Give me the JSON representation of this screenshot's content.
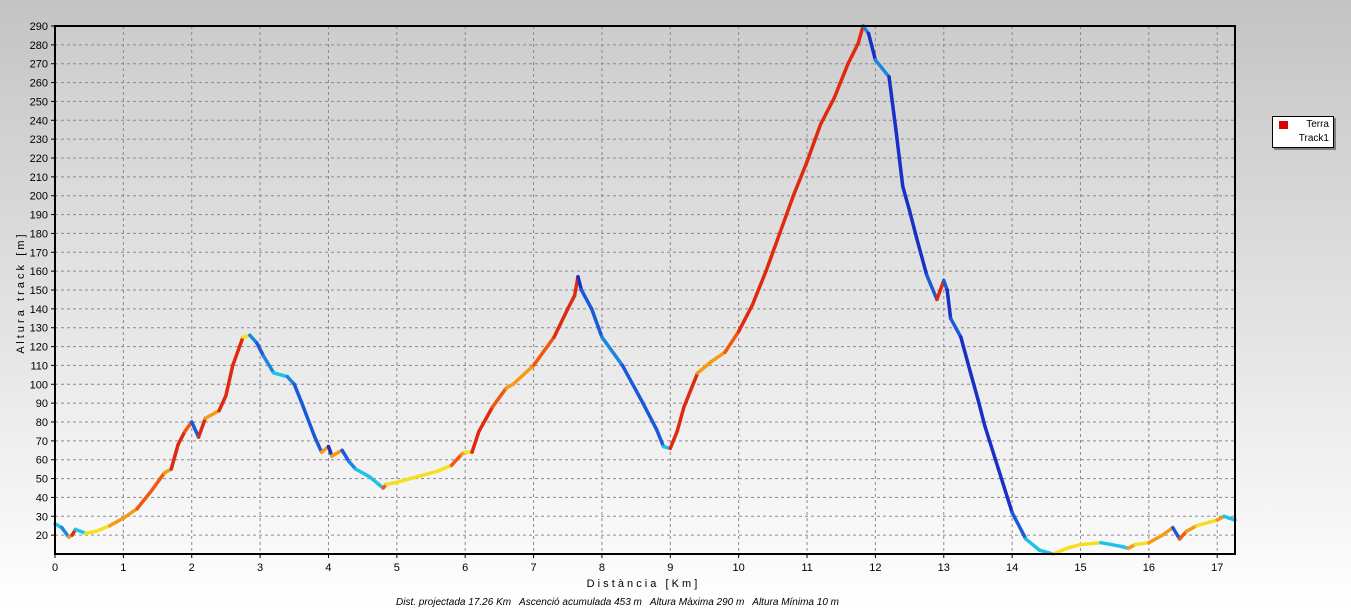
{
  "chart_data": {
    "type": "line",
    "xlabel": "D i s t à n c i a   [ K m ]",
    "ylabel": "A l t u r a   t r a c k   [ m ]",
    "xlim": [
      0,
      17.26
    ],
    "ylim": [
      10,
      290
    ],
    "x_ticks": [
      0,
      1,
      2,
      3,
      4,
      5,
      6,
      7,
      8,
      9,
      10,
      11,
      12,
      13,
      14,
      15,
      16,
      17
    ],
    "y_ticks": [
      20,
      30,
      40,
      50,
      60,
      70,
      80,
      90,
      100,
      110,
      120,
      130,
      140,
      150,
      160,
      170,
      180,
      190,
      200,
      210,
      220,
      230,
      240,
      250,
      260,
      270,
      280,
      290
    ],
    "grid": true,
    "legend_position": "right",
    "series": [
      {
        "name": "Track1",
        "x": [
          0,
          0.1,
          0.2,
          0.25,
          0.3,
          0.45,
          0.6,
          0.8,
          1.0,
          1.2,
          1.4,
          1.6,
          1.7,
          1.8,
          1.9,
          2.0,
          2.1,
          2.2,
          2.4,
          2.5,
          2.6,
          2.75,
          2.85,
          2.95,
          3.05,
          3.2,
          3.4,
          3.5,
          3.6,
          3.8,
          3.9,
          4.0,
          4.05,
          4.2,
          4.3,
          4.4,
          4.6,
          4.8,
          4.85,
          5.0,
          5.3,
          5.6,
          5.8,
          5.95,
          6.0,
          6.1,
          6.2,
          6.4,
          6.6,
          6.7,
          7.0,
          7.3,
          7.5,
          7.6,
          7.65,
          7.7,
          7.85,
          8.0,
          8.3,
          8.6,
          8.8,
          8.9,
          9.0,
          9.1,
          9.2,
          9.4,
          9.6,
          9.8,
          10.0,
          10.2,
          10.4,
          10.6,
          10.8,
          11.0,
          11.2,
          11.4,
          11.6,
          11.75,
          11.82,
          11.9,
          12.0,
          12.2,
          12.3,
          12.4,
          12.5,
          12.6,
          12.75,
          12.9,
          13.0,
          13.05,
          13.1,
          13.25,
          13.4,
          13.5,
          13.6,
          13.8,
          14.0,
          14.2,
          14.4,
          14.6,
          14.8,
          15.0,
          15.3,
          15.6,
          15.7,
          15.8,
          16.0,
          16.2,
          16.35,
          16.45,
          16.55,
          16.7,
          16.9,
          17.0,
          17.1,
          17.26
        ],
        "values": [
          26,
          24,
          19,
          20,
          23,
          21,
          22,
          25,
          29,
          34,
          43,
          53,
          55,
          68,
          75,
          80,
          72,
          82,
          86,
          94,
          110,
          125,
          126,
          122,
          115,
          106,
          104,
          100,
          91,
          72,
          64,
          67,
          62,
          65,
          59,
          55,
          51,
          45,
          47,
          48,
          51,
          54,
          57,
          63,
          64,
          64,
          75,
          88,
          98,
          100,
          110,
          125,
          140,
          147,
          157,
          150,
          140,
          125,
          110,
          90,
          76,
          67,
          66,
          75,
          88,
          106,
          112,
          117,
          128,
          142,
          160,
          180,
          200,
          218,
          238,
          252,
          270,
          281,
          290,
          286,
          272,
          263,
          235,
          205,
          192,
          178,
          158,
          145,
          155,
          150,
          135,
          125,
          105,
          92,
          78,
          55,
          32,
          18,
          12,
          10,
          13,
          15,
          16,
          14,
          13,
          15,
          16,
          20,
          24,
          18,
          22,
          25,
          27,
          28,
          30,
          28
        ]
      }
    ],
    "legend": [
      {
        "label": "Terra",
        "color": "#e00000"
      },
      {
        "label": "Track1",
        "color": ""
      }
    ]
  },
  "footer": {
    "text": "Dist. projectada 17.26 Km   Ascenció acumulada 453 m   Altura Màxima 290 m   Altura Mínima 10 m"
  }
}
